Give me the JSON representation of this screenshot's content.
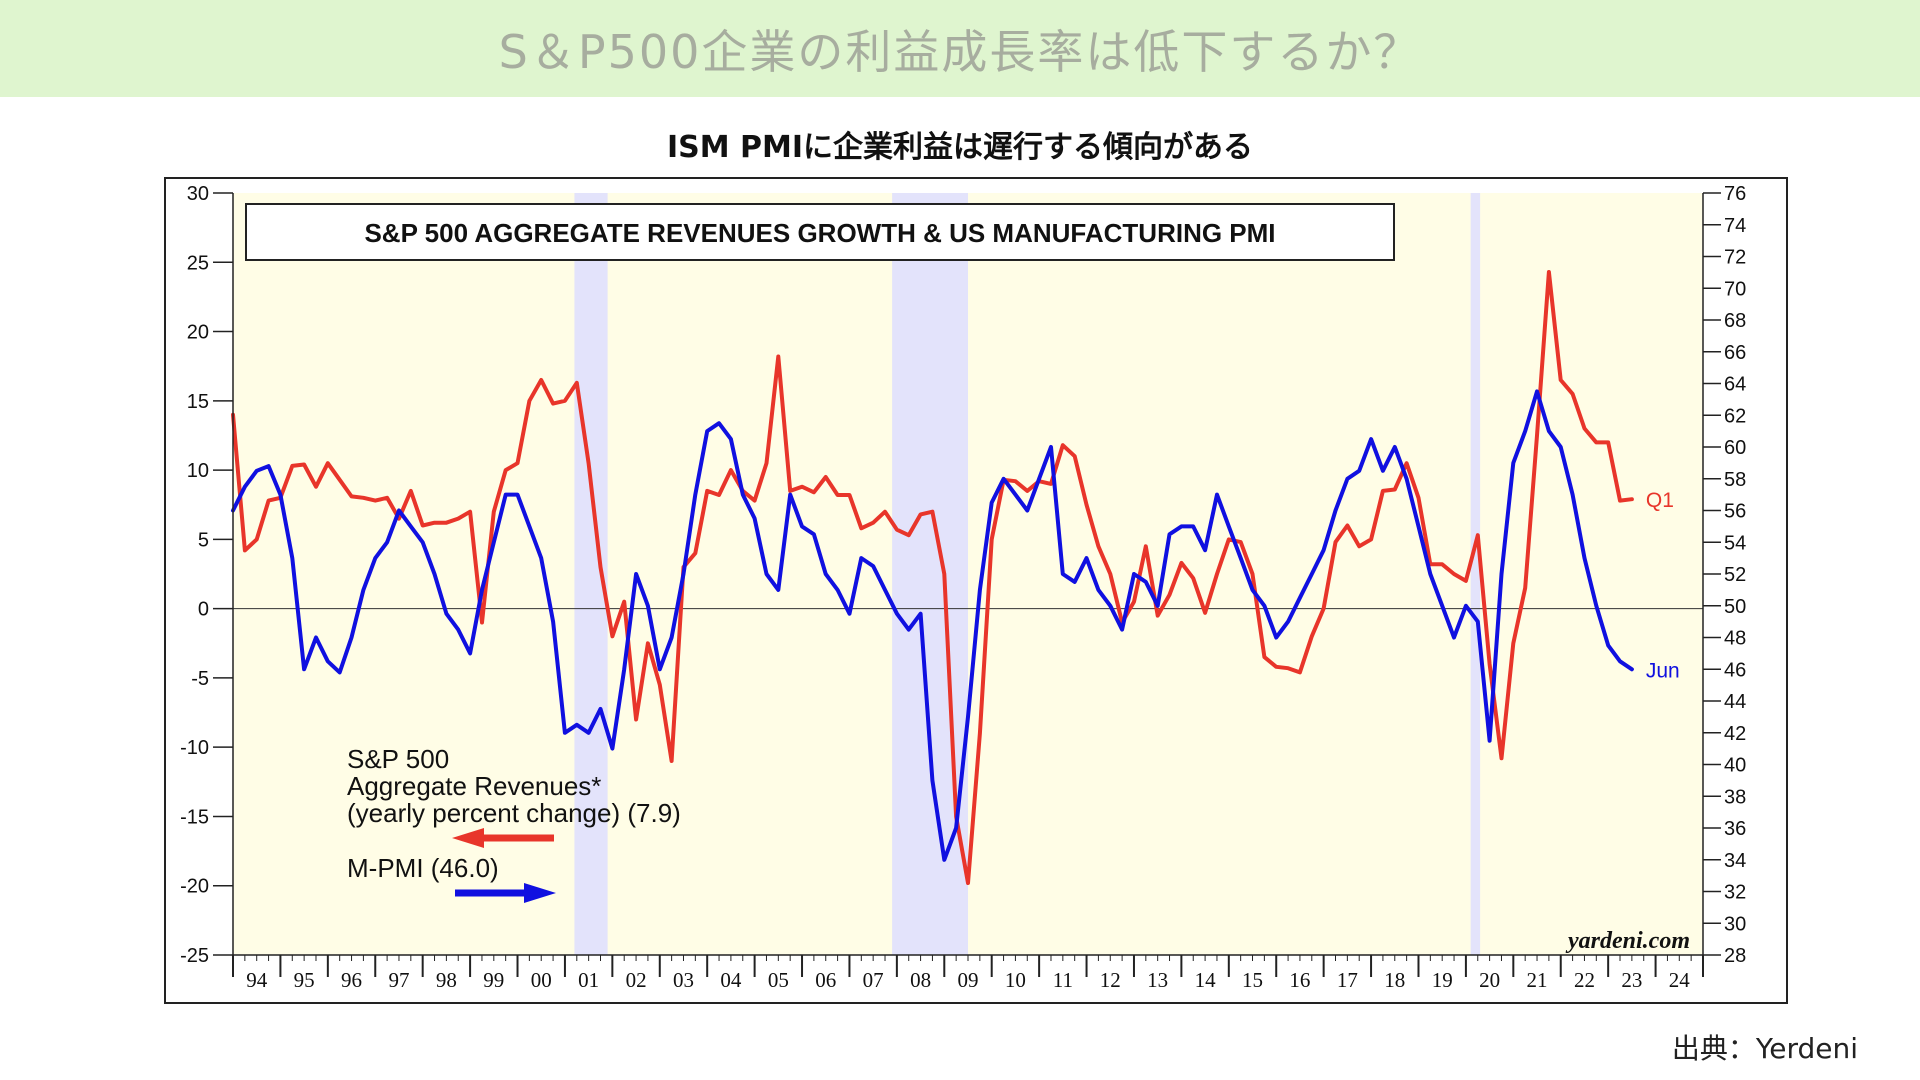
{
  "banner": {
    "title": "S＆P500企業の利益成長率は低下するか？"
  },
  "subtitle": "ISM PMIに企業利益は遅行する傾向がある",
  "source": "出典：Yerdeni",
  "colors": {
    "banner_bg": "#dff5cf",
    "plot_bg": "#fffde6",
    "recession": "#e3e3fb",
    "revenues_line": "#e8352a",
    "pmi_line": "#1010e0"
  },
  "chart_data": {
    "type": "line",
    "title": "S&P 500 AGGREGATE REVENUES GROWTH & US MANUFACTURING PMI",
    "watermark": "yardeni.com",
    "x_tick_labels": [
      "94",
      "95",
      "96",
      "97",
      "98",
      "99",
      "00",
      "01",
      "02",
      "03",
      "04",
      "05",
      "06",
      "07",
      "08",
      "09",
      "10",
      "11",
      "12",
      "13",
      "14",
      "15",
      "16",
      "17",
      "18",
      "19",
      "20",
      "21",
      "22",
      "23",
      "24"
    ],
    "x_range": [
      1994,
      2025
    ],
    "y_left": {
      "range": [
        -25,
        30
      ],
      "ticks": [
        30,
        25,
        20,
        15,
        10,
        5,
        0,
        -5,
        -10,
        -15,
        -20,
        -25
      ]
    },
    "y_right": {
      "range": [
        28,
        76
      ],
      "ticks": [
        76,
        74,
        72,
        70,
        68,
        66,
        64,
        62,
        60,
        58,
        56,
        54,
        52,
        50,
        48,
        46,
        44,
        42,
        40,
        38,
        36,
        34,
        32,
        30,
        28
      ]
    },
    "zero_line": 0,
    "recessions": [
      [
        2001.2,
        2001.9
      ],
      [
        2007.9,
        2009.5
      ],
      [
        2020.1,
        2020.3
      ]
    ],
    "series": [
      {
        "name": "S&P 500 Aggregate Revenues* (yearly percent change) (7.9)",
        "axis": "left",
        "end_label": "Q1",
        "points": [
          [
            1994.0,
            14
          ],
          [
            1994.25,
            4.2
          ],
          [
            1994.5,
            5
          ],
          [
            1994.75,
            7.8
          ],
          [
            1995.0,
            8
          ],
          [
            1995.25,
            10.3
          ],
          [
            1995.5,
            10.4
          ],
          [
            1995.75,
            8.8
          ],
          [
            1996.0,
            10.5
          ],
          [
            1996.25,
            9.3
          ],
          [
            1996.5,
            8.1
          ],
          [
            1996.75,
            8
          ],
          [
            1997.0,
            7.8
          ],
          [
            1997.25,
            8
          ],
          [
            1997.5,
            6.5
          ],
          [
            1997.75,
            8.5
          ],
          [
            1998.0,
            6
          ],
          [
            1998.25,
            6.2
          ],
          [
            1998.5,
            6.2
          ],
          [
            1998.75,
            6.5
          ],
          [
            1999.0,
            7
          ],
          [
            1999.25,
            -1
          ],
          [
            1999.5,
            7
          ],
          [
            1999.75,
            10
          ],
          [
            2000.0,
            10.5
          ],
          [
            2000.25,
            15
          ],
          [
            2000.5,
            16.5
          ],
          [
            2000.75,
            14.8
          ],
          [
            2001.0,
            15
          ],
          [
            2001.25,
            16.3
          ],
          [
            2001.5,
            10.5
          ],
          [
            2001.75,
            3
          ],
          [
            2002.0,
            -2
          ],
          [
            2002.25,
            0.5
          ],
          [
            2002.5,
            -8
          ],
          [
            2002.75,
            -2.5
          ],
          [
            2003.0,
            -5.5
          ],
          [
            2003.25,
            -11
          ],
          [
            2003.5,
            3
          ],
          [
            2003.75,
            4
          ],
          [
            2004.0,
            8.5
          ],
          [
            2004.25,
            8.2
          ],
          [
            2004.5,
            10
          ],
          [
            2004.75,
            8.5
          ],
          [
            2005.0,
            7.8
          ],
          [
            2005.25,
            10.5
          ],
          [
            2005.5,
            18.2
          ],
          [
            2005.75,
            8.5
          ],
          [
            2006.0,
            8.8
          ],
          [
            2006.25,
            8.4
          ],
          [
            2006.5,
            9.5
          ],
          [
            2006.75,
            8.2
          ],
          [
            2007.0,
            8.2
          ],
          [
            2007.25,
            5.8
          ],
          [
            2007.5,
            6.2
          ],
          [
            2007.75,
            7
          ],
          [
            2008.0,
            5.7
          ],
          [
            2008.25,
            5.3
          ],
          [
            2008.5,
            6.8
          ],
          [
            2008.75,
            7
          ],
          [
            2009.0,
            2.5
          ],
          [
            2009.25,
            -15
          ],
          [
            2009.5,
            -19.8
          ],
          [
            2009.75,
            -9
          ],
          [
            2010.0,
            5
          ],
          [
            2010.25,
            9.3
          ],
          [
            2010.5,
            9.2
          ],
          [
            2010.75,
            8.5
          ],
          [
            2011.0,
            9.2
          ],
          [
            2011.25,
            9
          ],
          [
            2011.5,
            11.8
          ],
          [
            2011.75,
            11
          ],
          [
            2012.0,
            7.5
          ],
          [
            2012.25,
            4.5
          ],
          [
            2012.5,
            2.5
          ],
          [
            2012.75,
            -1
          ],
          [
            2013.0,
            0.5
          ],
          [
            2013.25,
            4.5
          ],
          [
            2013.5,
            -0.5
          ],
          [
            2013.75,
            1
          ],
          [
            2014.0,
            3.3
          ],
          [
            2014.25,
            2.2
          ],
          [
            2014.5,
            -0.3
          ],
          [
            2014.75,
            2.5
          ],
          [
            2015.0,
            5
          ],
          [
            2015.25,
            4.8
          ],
          [
            2015.5,
            2.5
          ],
          [
            2015.75,
            -3.5
          ],
          [
            2016.0,
            -4.2
          ],
          [
            2016.25,
            -4.3
          ],
          [
            2016.5,
            -4.6
          ],
          [
            2016.75,
            -2
          ],
          [
            2017.0,
            0
          ],
          [
            2017.25,
            4.8
          ],
          [
            2017.5,
            6
          ],
          [
            2017.75,
            4.5
          ],
          [
            2018.0,
            5
          ],
          [
            2018.25,
            8.5
          ],
          [
            2018.5,
            8.6
          ],
          [
            2018.75,
            10.5
          ],
          [
            2019.0,
            8
          ],
          [
            2019.25,
            3.2
          ],
          [
            2019.5,
            3.2
          ],
          [
            2019.75,
            2.5
          ],
          [
            2020.0,
            2
          ],
          [
            2020.25,
            5.3
          ],
          [
            2020.5,
            -4
          ],
          [
            2020.75,
            -10.8
          ],
          [
            2021.0,
            -2.5
          ],
          [
            2021.25,
            1.5
          ],
          [
            2021.5,
            12.5
          ],
          [
            2021.75,
            24.3
          ],
          [
            2022.0,
            16.5
          ],
          [
            2022.25,
            15.5
          ],
          [
            2022.5,
            13
          ],
          [
            2022.75,
            12
          ],
          [
            2023.0,
            12
          ],
          [
            2023.25,
            7.8
          ],
          [
            2023.5,
            7.9
          ]
        ]
      },
      {
        "name": "M-PMI (46.0)",
        "axis": "right",
        "end_label": "Jun",
        "points": [
          [
            1994.0,
            56
          ],
          [
            1994.25,
            57.5
          ],
          [
            1994.5,
            58.5
          ],
          [
            1994.75,
            58.8
          ],
          [
            1995.0,
            57
          ],
          [
            1995.25,
            53
          ],
          [
            1995.5,
            46
          ],
          [
            1995.75,
            48
          ],
          [
            1996.0,
            46.5
          ],
          [
            1996.25,
            45.8
          ],
          [
            1996.5,
            48
          ],
          [
            1996.75,
            51
          ],
          [
            1997.0,
            53
          ],
          [
            1997.25,
            54
          ],
          [
            1997.5,
            56
          ],
          [
            1997.75,
            55
          ],
          [
            1998.0,
            54
          ],
          [
            1998.25,
            52
          ],
          [
            1998.5,
            49.5
          ],
          [
            1998.75,
            48.5
          ],
          [
            1999.0,
            47
          ],
          [
            1999.25,
            51
          ],
          [
            1999.5,
            54
          ],
          [
            1999.75,
            57
          ],
          [
            2000.0,
            57
          ],
          [
            2000.25,
            55
          ],
          [
            2000.5,
            53
          ],
          [
            2000.75,
            49
          ],
          [
            2001.0,
            42
          ],
          [
            2001.25,
            42.5
          ],
          [
            2001.5,
            42
          ],
          [
            2001.75,
            43.5
          ],
          [
            2002.0,
            41
          ],
          [
            2002.25,
            46
          ],
          [
            2002.5,
            52
          ],
          [
            2002.75,
            50
          ],
          [
            2003.0,
            46
          ],
          [
            2003.25,
            48
          ],
          [
            2003.5,
            52
          ],
          [
            2003.75,
            57
          ],
          [
            2004.0,
            61
          ],
          [
            2004.25,
            61.5
          ],
          [
            2004.5,
            60.5
          ],
          [
            2004.75,
            57
          ],
          [
            2005.0,
            55.5
          ],
          [
            2005.25,
            52
          ],
          [
            2005.5,
            51
          ],
          [
            2005.75,
            57
          ],
          [
            2006.0,
            55
          ],
          [
            2006.25,
            54.5
          ],
          [
            2006.5,
            52
          ],
          [
            2006.75,
            51
          ],
          [
            2007.0,
            49.5
          ],
          [
            2007.25,
            53
          ],
          [
            2007.5,
            52.5
          ],
          [
            2007.75,
            51
          ],
          [
            2008.0,
            49.5
          ],
          [
            2008.25,
            48.5
          ],
          [
            2008.5,
            49.5
          ],
          [
            2008.75,
            39
          ],
          [
            2009.0,
            34
          ],
          [
            2009.25,
            36
          ],
          [
            2009.5,
            43
          ],
          [
            2009.75,
            51
          ],
          [
            2010.0,
            56.5
          ],
          [
            2010.25,
            58
          ],
          [
            2010.5,
            57
          ],
          [
            2010.75,
            56
          ],
          [
            2011.0,
            58
          ],
          [
            2011.25,
            60
          ],
          [
            2011.5,
            52
          ],
          [
            2011.75,
            51.5
          ],
          [
            2012.0,
            53
          ],
          [
            2012.25,
            51
          ],
          [
            2012.5,
            50
          ],
          [
            2012.75,
            48.5
          ],
          [
            2013.0,
            52
          ],
          [
            2013.25,
            51.5
          ],
          [
            2013.5,
            50
          ],
          [
            2013.75,
            54.5
          ],
          [
            2014.0,
            55
          ],
          [
            2014.25,
            55
          ],
          [
            2014.5,
            53.5
          ],
          [
            2014.75,
            57
          ],
          [
            2015.0,
            55
          ],
          [
            2015.25,
            53
          ],
          [
            2015.5,
            51
          ],
          [
            2015.75,
            50
          ],
          [
            2016.0,
            48
          ],
          [
            2016.25,
            49
          ],
          [
            2016.5,
            50.5
          ],
          [
            2016.75,
            52
          ],
          [
            2017.0,
            53.5
          ],
          [
            2017.25,
            56
          ],
          [
            2017.5,
            58
          ],
          [
            2017.75,
            58.5
          ],
          [
            2018.0,
            60.5
          ],
          [
            2018.25,
            58.5
          ],
          [
            2018.5,
            60
          ],
          [
            2018.75,
            58
          ],
          [
            2019.0,
            55
          ],
          [
            2019.25,
            52
          ],
          [
            2019.5,
            50
          ],
          [
            2019.75,
            48
          ],
          [
            2020.0,
            50
          ],
          [
            2020.25,
            49
          ],
          [
            2020.5,
            41.5
          ],
          [
            2020.75,
            52
          ],
          [
            2021.0,
            59
          ],
          [
            2021.25,
            61
          ],
          [
            2021.5,
            63.5
          ],
          [
            2021.75,
            61
          ],
          [
            2022.0,
            60
          ],
          [
            2022.25,
            57
          ],
          [
            2022.5,
            53
          ],
          [
            2022.75,
            50
          ],
          [
            2023.0,
            47.5
          ],
          [
            2023.25,
            46.5
          ],
          [
            2023.5,
            46
          ]
        ]
      }
    ],
    "legend": {
      "revenues": [
        "S&P 500",
        "Aggregate Revenues*",
        "(yearly percent change) (7.9)"
      ],
      "pmi": "M-PMI (46.0)",
      "placement": "lower-left"
    }
  }
}
